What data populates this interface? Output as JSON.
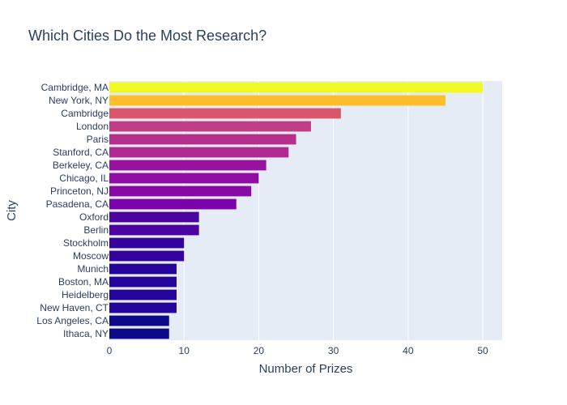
{
  "chart_data": {
    "type": "bar",
    "orientation": "horizontal",
    "title": "Which Cities Do the Most Research?",
    "xlabel": "Number of Prizes",
    "ylabel": "City",
    "xlim": [
      0,
      52.6
    ],
    "xticks": [
      0,
      10,
      20,
      30,
      40,
      50
    ],
    "grid": true,
    "legend": "none",
    "colorscale": "plasma",
    "plot_background": "#e5ecf6",
    "text_color": "#2a3f5f",
    "categories": [
      "Cambridge, MA",
      "New York, NY",
      "Cambridge",
      "London",
      "Paris",
      "Stanford, CA",
      "Berkeley, CA",
      "Chicago, IL",
      "Princeton, NJ",
      "Pasadena, CA",
      "Oxford",
      "Berlin",
      "Stockholm",
      "Moscow",
      "Munich",
      "Boston, MA",
      "Heidelberg",
      "New Haven, CT",
      "Los Angeles, CA",
      "Ithaca, NY"
    ],
    "values": [
      50,
      45,
      31,
      27,
      25,
      24,
      21,
      20,
      19,
      17,
      12,
      12,
      10,
      10,
      9,
      9,
      9,
      9,
      8,
      8
    ],
    "colors": [
      "#f0f921",
      "#febd2a",
      "#d8576b",
      "#c03e84",
      "#b6308b",
      "#b02991",
      "#9814a0",
      "#900da3",
      "#880aa5",
      "#7a02a8",
      "#4a03a0",
      "#4a03a0",
      "#33039b",
      "#33039b",
      "#24049a",
      "#24049a",
      "#24049a",
      "#24049a",
      "#0d0887",
      "#0d0887"
    ]
  }
}
